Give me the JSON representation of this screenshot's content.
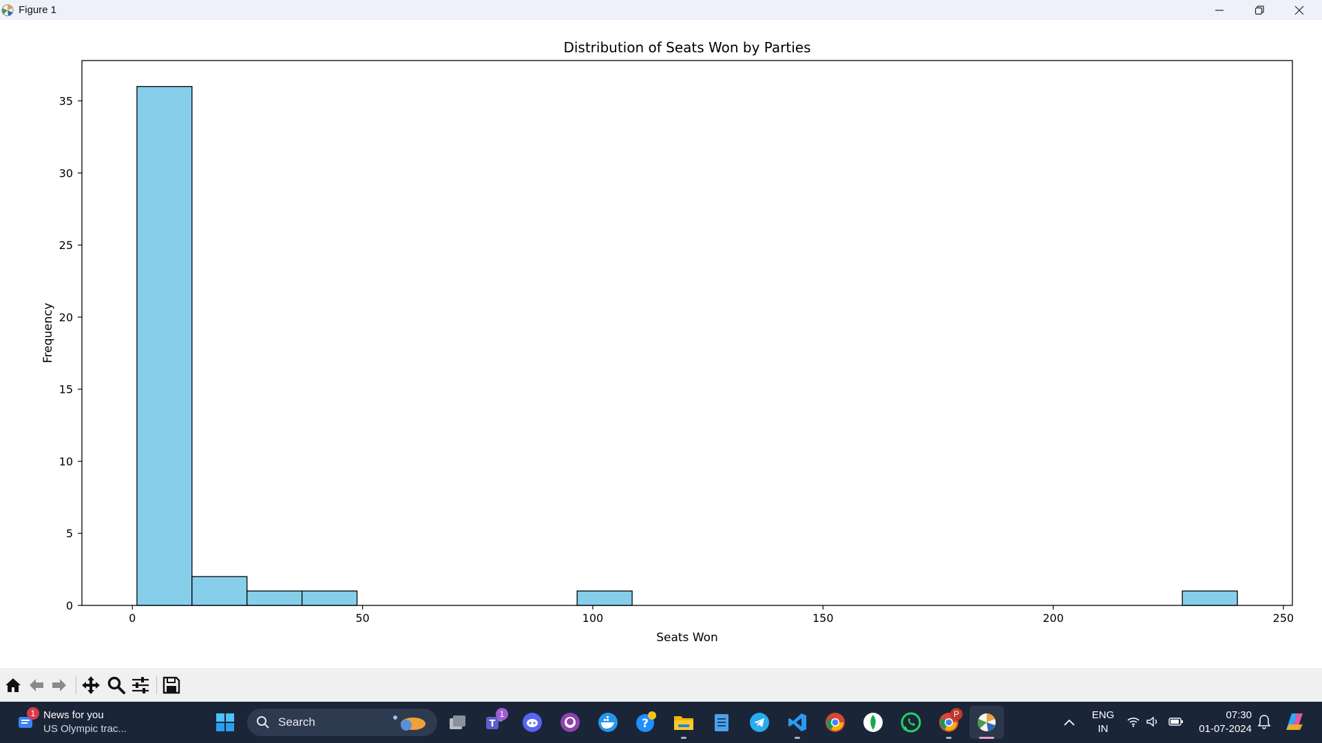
{
  "window": {
    "title": "Figure 1"
  },
  "chart_data": {
    "type": "bar",
    "title": "Distribution of Seats Won by Parties",
    "xlabel": "Seats Won",
    "ylabel": "Frequency",
    "bin_edges": [
      1.0,
      12.95,
      24.9,
      36.85,
      48.8,
      60.75,
      72.7,
      84.65,
      96.6,
      108.55,
      120.5,
      132.45,
      144.4,
      156.35,
      168.3,
      180.25,
      192.2,
      204.15,
      216.1,
      228.05,
      240.0
    ],
    "values": [
      36,
      2,
      1,
      1,
      0,
      0,
      0,
      0,
      1,
      0,
      0,
      0,
      0,
      0,
      0,
      0,
      0,
      0,
      0,
      1
    ],
    "xlim": [
      -10.95,
      251.95
    ],
    "ylim": [
      0,
      37.8
    ],
    "x_ticks": [
      "0",
      "50",
      "100",
      "150",
      "200",
      "250"
    ],
    "y_ticks": [
      "0",
      "5",
      "10",
      "15",
      "20",
      "25",
      "30",
      "35"
    ],
    "bar_color": "#87ceeb",
    "edge_color": "#000000",
    "grid": false
  },
  "toolbar": {
    "items": [
      "home-icon",
      "back-icon",
      "forward-icon",
      "pan-icon",
      "zoom-icon",
      "configure-icon",
      "save-icon"
    ]
  },
  "taskbar": {
    "news_title": "News for you",
    "news_subtitle": "US Olympic trac...",
    "news_badge": "1",
    "search_label": "Search",
    "teams_badge": "1",
    "chrome_profile_badge": "P",
    "language": "ENG",
    "region": "IN",
    "time": "07:30",
    "date": "01-07-2024"
  }
}
